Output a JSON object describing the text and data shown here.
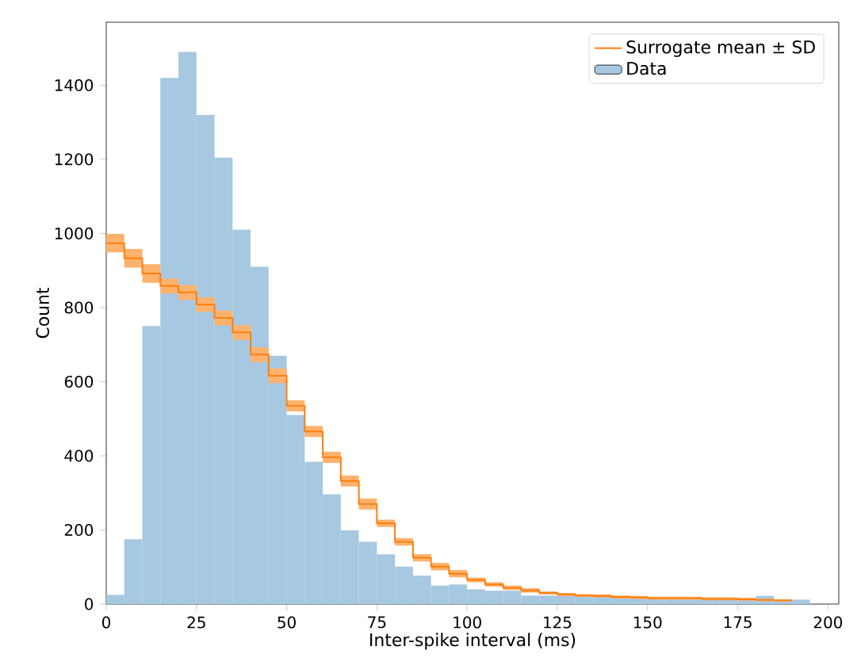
{
  "chart_data": {
    "type": "histogram",
    "xlabel": "Inter-spike interval (ms)",
    "ylabel": "Count",
    "bins": [
      0,
      5,
      10,
      15,
      20,
      25,
      30,
      35,
      40,
      45,
      50,
      55,
      60,
      65,
      70,
      75,
      80,
      85,
      90,
      95,
      100,
      105,
      110,
      115,
      120,
      125,
      130,
      135,
      140,
      145,
      150,
      155,
      160,
      165,
      170,
      175,
      180,
      185,
      190,
      195
    ],
    "xlim": [
      0,
      203
    ],
    "ylim": [
      0,
      1570
    ],
    "xticks": [
      0,
      25,
      50,
      75,
      100,
      125,
      150,
      175,
      200
    ],
    "yticks": [
      0,
      200,
      400,
      600,
      800,
      1000,
      1200,
      1400
    ],
    "legend": "top right",
    "series": [
      {
        "name": "Surrogate mean ± SD",
        "type": "step",
        "color": "#ff7f0e",
        "x": [
          0,
          5,
          10,
          15,
          20,
          25,
          30,
          35,
          40,
          45,
          50,
          55,
          60,
          65,
          70,
          75,
          80,
          85,
          90,
          95,
          100,
          105,
          110,
          115,
          120,
          125,
          130,
          135,
          140,
          145,
          150,
          155,
          160,
          165,
          170,
          175,
          180,
          185,
          190
        ],
        "values": [
          974,
          933,
          892,
          858,
          841,
          808,
          772,
          733,
          673,
          616,
          535,
          466,
          396,
          332,
          270,
          218,
          168,
          125,
          101,
          82,
          65,
          53,
          44,
          37,
          30,
          26,
          23,
          22,
          19,
          18,
          16,
          16,
          16,
          14,
          14,
          13,
          11,
          10,
          10
        ],
        "lower": [
          949,
          908,
          867,
          838,
          821,
          788,
          752,
          713,
          653,
          596,
          520,
          451,
          381,
          317,
          255,
          208,
          158,
          115,
          91,
          72,
          59,
          47,
          38,
          31,
          26,
          22,
          19,
          18,
          15,
          14,
          12,
          12,
          12,
          10,
          10,
          9,
          8,
          7,
          7
        ],
        "upper": [
          999,
          958,
          917,
          878,
          861,
          828,
          792,
          753,
          693,
          636,
          550,
          481,
          411,
          347,
          285,
          228,
          178,
          135,
          111,
          92,
          71,
          59,
          50,
          43,
          34,
          30,
          27,
          26,
          23,
          22,
          20,
          20,
          20,
          18,
          18,
          17,
          14,
          13,
          13
        ]
      },
      {
        "name": "Data",
        "color": "#a6c8e0",
        "values": [
          25,
          175,
          750,
          1420,
          1490,
          1320,
          1205,
          1010,
          910,
          670,
          510,
          384,
          296,
          199,
          168,
          134,
          101,
          77,
          50,
          53,
          40,
          36,
          36,
          23,
          23,
          27,
          25,
          22,
          19,
          18,
          16,
          14,
          14,
          14,
          12,
          12,
          22,
          12,
          12
        ]
      }
    ]
  }
}
